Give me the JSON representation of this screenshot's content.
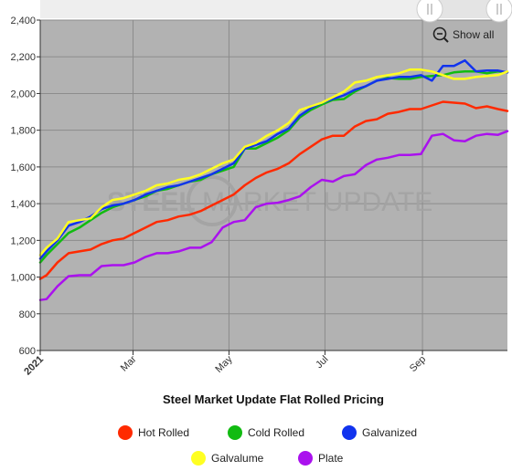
{
  "chart_data": {
    "type": "line",
    "title": "Steel Market Update Flat Rolled Pricing",
    "xlabel": "",
    "ylabel": "",
    "ylim": [
      600,
      2400
    ],
    "yticks": [
      600,
      800,
      1000,
      1200,
      1400,
      1600,
      1800,
      2000,
      2200,
      2400
    ],
    "xlim": [
      "2021-01-01",
      "2021-10-25"
    ],
    "xticks": [
      {
        "date": "2021-01-01",
        "label": "2021"
      },
      {
        "date": "2021-03-01",
        "label": "Mar"
      },
      {
        "date": "2021-05-01",
        "label": "May"
      },
      {
        "date": "2021-07-01",
        "label": "Jul"
      },
      {
        "date": "2021-09-01",
        "label": "Sep"
      }
    ],
    "grid": true,
    "legend_position": "bottom",
    "plot_background": "#b2b2b2",
    "x": [
      "2021-01-01",
      "2021-01-05",
      "2021-01-12",
      "2021-01-19",
      "2021-01-26",
      "2021-02-02",
      "2021-02-09",
      "2021-02-16",
      "2021-02-23",
      "2021-03-02",
      "2021-03-09",
      "2021-03-16",
      "2021-03-23",
      "2021-03-30",
      "2021-04-06",
      "2021-04-13",
      "2021-04-20",
      "2021-04-27",
      "2021-05-04",
      "2021-05-11",
      "2021-05-18",
      "2021-05-25",
      "2021-06-01",
      "2021-06-08",
      "2021-06-15",
      "2021-06-22",
      "2021-06-29",
      "2021-07-06",
      "2021-07-13",
      "2021-07-20",
      "2021-07-27",
      "2021-08-03",
      "2021-08-10",
      "2021-08-17",
      "2021-08-24",
      "2021-08-31",
      "2021-09-07",
      "2021-09-14",
      "2021-09-21",
      "2021-09-28",
      "2021-10-05",
      "2021-10-12",
      "2021-10-19",
      "2021-10-25"
    ],
    "series": [
      {
        "name": "Hot Rolled",
        "color": "#ff2a00",
        "values": [
          990,
          1010,
          1080,
          1130,
          1140,
          1150,
          1180,
          1200,
          1210,
          1240,
          1270,
          1300,
          1310,
          1330,
          1340,
          1360,
          1390,
          1420,
          1450,
          1500,
          1540,
          1570,
          1590,
          1620,
          1670,
          1710,
          1750,
          1770,
          1770,
          1820,
          1850,
          1860,
          1890,
          1900,
          1915,
          1915,
          1935,
          1955,
          1950,
          1945,
          1920,
          1930,
          1915,
          1905
        ]
      },
      {
        "name": "Cold Rolled",
        "color": "#11bb11",
        "values": [
          1080,
          1120,
          1180,
          1240,
          1270,
          1310,
          1350,
          1380,
          1400,
          1420,
          1440,
          1470,
          1480,
          1500,
          1520,
          1530,
          1560,
          1580,
          1600,
          1700,
          1700,
          1730,
          1760,
          1800,
          1870,
          1910,
          1940,
          1965,
          1970,
          2010,
          2040,
          2070,
          2085,
          2080,
          2080,
          2090,
          2095,
          2100,
          2115,
          2120,
          2120,
          2110,
          2120,
          2115
        ]
      },
      {
        "name": "Galvanized",
        "color": "#1133ee",
        "values": [
          1100,
          1140,
          1200,
          1280,
          1300,
          1330,
          1370,
          1390,
          1400,
          1420,
          1450,
          1470,
          1490,
          1500,
          1520,
          1540,
          1560,
          1590,
          1620,
          1700,
          1720,
          1740,
          1780,
          1810,
          1880,
          1920,
          1950,
          1970,
          1990,
          2020,
          2040,
          2070,
          2080,
          2090,
          2090,
          2100,
          2070,
          2150,
          2150,
          2180,
          2120,
          2125,
          2125,
          2115
        ]
      },
      {
        "name": "Galvalume",
        "color": "#ffff22",
        "values": [
          1120,
          1160,
          1210,
          1300,
          1310,
          1320,
          1380,
          1420,
          1430,
          1450,
          1470,
          1500,
          1510,
          1530,
          1540,
          1560,
          1590,
          1620,
          1640,
          1710,
          1730,
          1770,
          1800,
          1840,
          1910,
          1930,
          1950,
          1980,
          2010,
          2060,
          2070,
          2090,
          2100,
          2110,
          2130,
          2130,
          2120,
          2100,
          2080,
          2080,
          2090,
          2095,
          2100,
          2120
        ]
      },
      {
        "name": "Plate",
        "color": "#aa11ee",
        "values": [
          875,
          880,
          950,
          1005,
          1010,
          1010,
          1060,
          1065,
          1065,
          1080,
          1110,
          1130,
          1130,
          1140,
          1160,
          1160,
          1190,
          1270,
          1300,
          1310,
          1380,
          1400,
          1405,
          1420,
          1440,
          1490,
          1530,
          1520,
          1550,
          1560,
          1610,
          1640,
          1650,
          1665,
          1665,
          1670,
          1770,
          1780,
          1745,
          1740,
          1770,
          1780,
          1775,
          1795
        ]
      }
    ]
  },
  "watermark": {
    "left": "STEEL",
    "right": "MARKET UPDATE"
  },
  "zoom": {
    "show_all_label": "Show all",
    "icon": "zoom-out-icon"
  }
}
